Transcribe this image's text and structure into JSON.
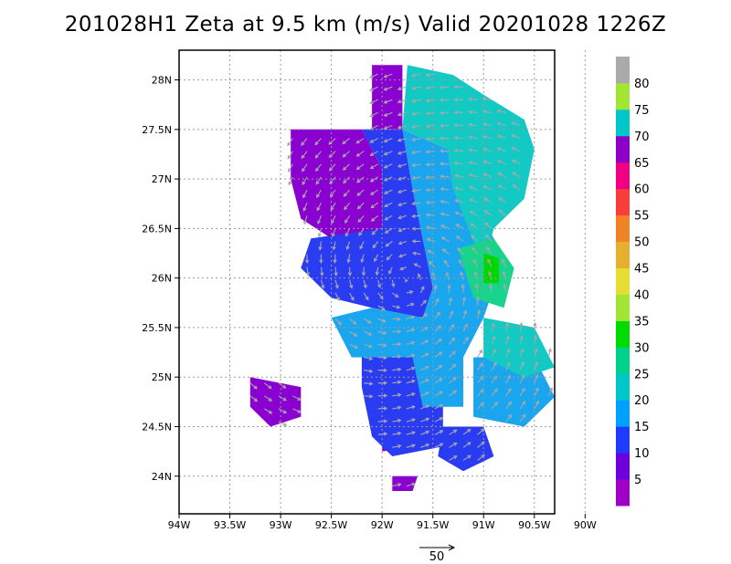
{
  "chart_data": {
    "type": "heatmap",
    "title": "201028H1 Zeta at 9.5 km (m/s) Valid 20201028 1226Z",
    "x_ticks": [
      "94W",
      "93.5W",
      "93W",
      "92.5W",
      "92W",
      "91.5W",
      "91W",
      "90.5W",
      "90W"
    ],
    "x_values": [
      -94,
      -93.5,
      -93,
      -92.5,
      -92,
      -91.5,
      -91,
      -90.5,
      -90
    ],
    "y_ticks": [
      "24N",
      "24.5N",
      "25N",
      "25.5N",
      "26N",
      "26.5N",
      "27N",
      "27.5N",
      "28N"
    ],
    "y_values": [
      24,
      24.5,
      25,
      25.5,
      26,
      26.5,
      27,
      27.5,
      28
    ],
    "xlim": [
      -94,
      -90.3
    ],
    "ylim": [
      23.62,
      28.3
    ],
    "grid": true,
    "colorbar": {
      "labels": [
        "5",
        "10",
        "15",
        "20",
        "25",
        "30",
        "35",
        "40",
        "45",
        "50",
        "55",
        "60",
        "65",
        "70",
        "75",
        "80"
      ],
      "colors": [
        "#a000c8",
        "#6e00dc",
        "#1e3cff",
        "#00a0ff",
        "#00c8c8",
        "#00d28c",
        "#00dc00",
        "#a0e632",
        "#e6dc32",
        "#e6af2d",
        "#f08228",
        "#fa3c3c",
        "#f00082",
        "#8c00c8",
        "#00c8c8",
        "#a0e632",
        "#aaaaaa"
      ]
    },
    "vector_reference": {
      "label": "50",
      "value": 50
    },
    "storm_center": {
      "lon": -91.75,
      "lat": 25.97
    },
    "regions": [
      {
        "value_band": "5-10",
        "polygon": [
          [
            -92.9,
            27.5
          ],
          [
            -92.2,
            27.5
          ],
          [
            -92.0,
            27.1
          ],
          [
            -92.0,
            26.5
          ],
          [
            -92.5,
            26.4
          ],
          [
            -92.8,
            26.6
          ],
          [
            -92.9,
            27.0
          ]
        ]
      },
      {
        "value_band": "5-10",
        "polygon": [
          [
            -92.1,
            28.15
          ],
          [
            -91.8,
            28.15
          ],
          [
            -91.8,
            27.5
          ],
          [
            -92.1,
            27.5
          ]
        ]
      },
      {
        "value_band": "5-10",
        "polygon": [
          [
            -93.3,
            25.0
          ],
          [
            -92.8,
            24.9
          ],
          [
            -92.8,
            24.6
          ],
          [
            -93.1,
            24.5
          ],
          [
            -93.3,
            24.7
          ]
        ]
      },
      {
        "value_band": "5-10",
        "polygon": [
          [
            -91.95,
            26.15
          ],
          [
            -91.65,
            26.1
          ],
          [
            -91.6,
            25.85
          ],
          [
            -91.85,
            25.8
          ],
          [
            -92.0,
            25.95
          ]
        ]
      },
      {
        "value_band": "5-10",
        "polygon": [
          [
            -92.0,
            24.6
          ],
          [
            -91.8,
            24.6
          ],
          [
            -91.7,
            24.3
          ],
          [
            -92.0,
            24.25
          ]
        ]
      },
      {
        "value_band": "5-10",
        "polygon": [
          [
            -91.9,
            24.0
          ],
          [
            -91.65,
            24.0
          ],
          [
            -91.7,
            23.85
          ],
          [
            -91.9,
            23.85
          ]
        ]
      },
      {
        "value_band": "10-15",
        "polygon": [
          [
            -92.2,
            27.5
          ],
          [
            -91.8,
            27.5
          ],
          [
            -91.7,
            26.9
          ],
          [
            -91.6,
            26.4
          ],
          [
            -91.5,
            25.9
          ],
          [
            -91.6,
            25.6
          ],
          [
            -92.1,
            25.7
          ],
          [
            -92.5,
            25.8
          ],
          [
            -92.8,
            26.1
          ],
          [
            -92.7,
            26.4
          ],
          [
            -92.0,
            26.5
          ],
          [
            -92.0,
            27.1
          ]
        ]
      },
      {
        "value_band": "10-15",
        "polygon": [
          [
            -92.2,
            25.3
          ],
          [
            -91.6,
            25.3
          ],
          [
            -91.4,
            24.7
          ],
          [
            -91.4,
            24.3
          ],
          [
            -91.9,
            24.2
          ],
          [
            -92.1,
            24.4
          ],
          [
            -92.2,
            24.9
          ]
        ]
      },
      {
        "value_band": "10-15",
        "polygon": [
          [
            -91.4,
            24.5
          ],
          [
            -91.0,
            24.5
          ],
          [
            -90.9,
            24.2
          ],
          [
            -91.2,
            24.05
          ],
          [
            -91.45,
            24.2
          ]
        ]
      },
      {
        "value_band": "15-20",
        "polygon": [
          [
            -91.8,
            27.5
          ],
          [
            -91.35,
            27.3
          ],
          [
            -91.3,
            26.9
          ],
          [
            -91.0,
            26.6
          ],
          [
            -90.8,
            26.2
          ],
          [
            -91.0,
            25.6
          ],
          [
            -91.2,
            25.2
          ],
          [
            -91.2,
            24.7
          ],
          [
            -91.6,
            24.7
          ],
          [
            -91.7,
            25.2
          ],
          [
            -92.3,
            25.2
          ],
          [
            -92.5,
            25.6
          ],
          [
            -92.1,
            25.7
          ],
          [
            -91.6,
            25.6
          ],
          [
            -91.5,
            25.9
          ],
          [
            -91.6,
            26.4
          ],
          [
            -91.7,
            26.9
          ]
        ]
      },
      {
        "value_band": "15-20",
        "polygon": [
          [
            -91.1,
            25.2
          ],
          [
            -90.5,
            25.2
          ],
          [
            -90.3,
            24.8
          ],
          [
            -90.6,
            24.5
          ],
          [
            -91.1,
            24.6
          ]
        ]
      },
      {
        "value_band": "20-25",
        "polygon": [
          [
            -91.75,
            28.15
          ],
          [
            -91.3,
            28.05
          ],
          [
            -91.0,
            27.85
          ],
          [
            -90.6,
            27.6
          ],
          [
            -90.5,
            27.3
          ],
          [
            -90.6,
            26.8
          ],
          [
            -90.9,
            26.5
          ],
          [
            -91.0,
            26.1
          ],
          [
            -91.3,
            26.9
          ],
          [
            -91.35,
            27.3
          ],
          [
            -91.8,
            27.5
          ]
        ]
      },
      {
        "value_band": "20-25",
        "polygon": [
          [
            -91.0,
            25.6
          ],
          [
            -90.5,
            25.5
          ],
          [
            -90.3,
            25.1
          ],
          [
            -90.6,
            25.0
          ],
          [
            -91.0,
            25.2
          ]
        ]
      },
      {
        "value_band": "25-30",
        "polygon": [
          [
            -91.25,
            26.3
          ],
          [
            -90.9,
            26.4
          ],
          [
            -90.7,
            26.1
          ],
          [
            -90.8,
            25.7
          ],
          [
            -91.1,
            25.8
          ]
        ]
      },
      {
        "value_band": "30-35",
        "polygon": [
          [
            -91.0,
            26.25
          ],
          [
            -90.85,
            26.2
          ],
          [
            -90.85,
            25.95
          ],
          [
            -91.0,
            25.95
          ]
        ]
      }
    ]
  }
}
